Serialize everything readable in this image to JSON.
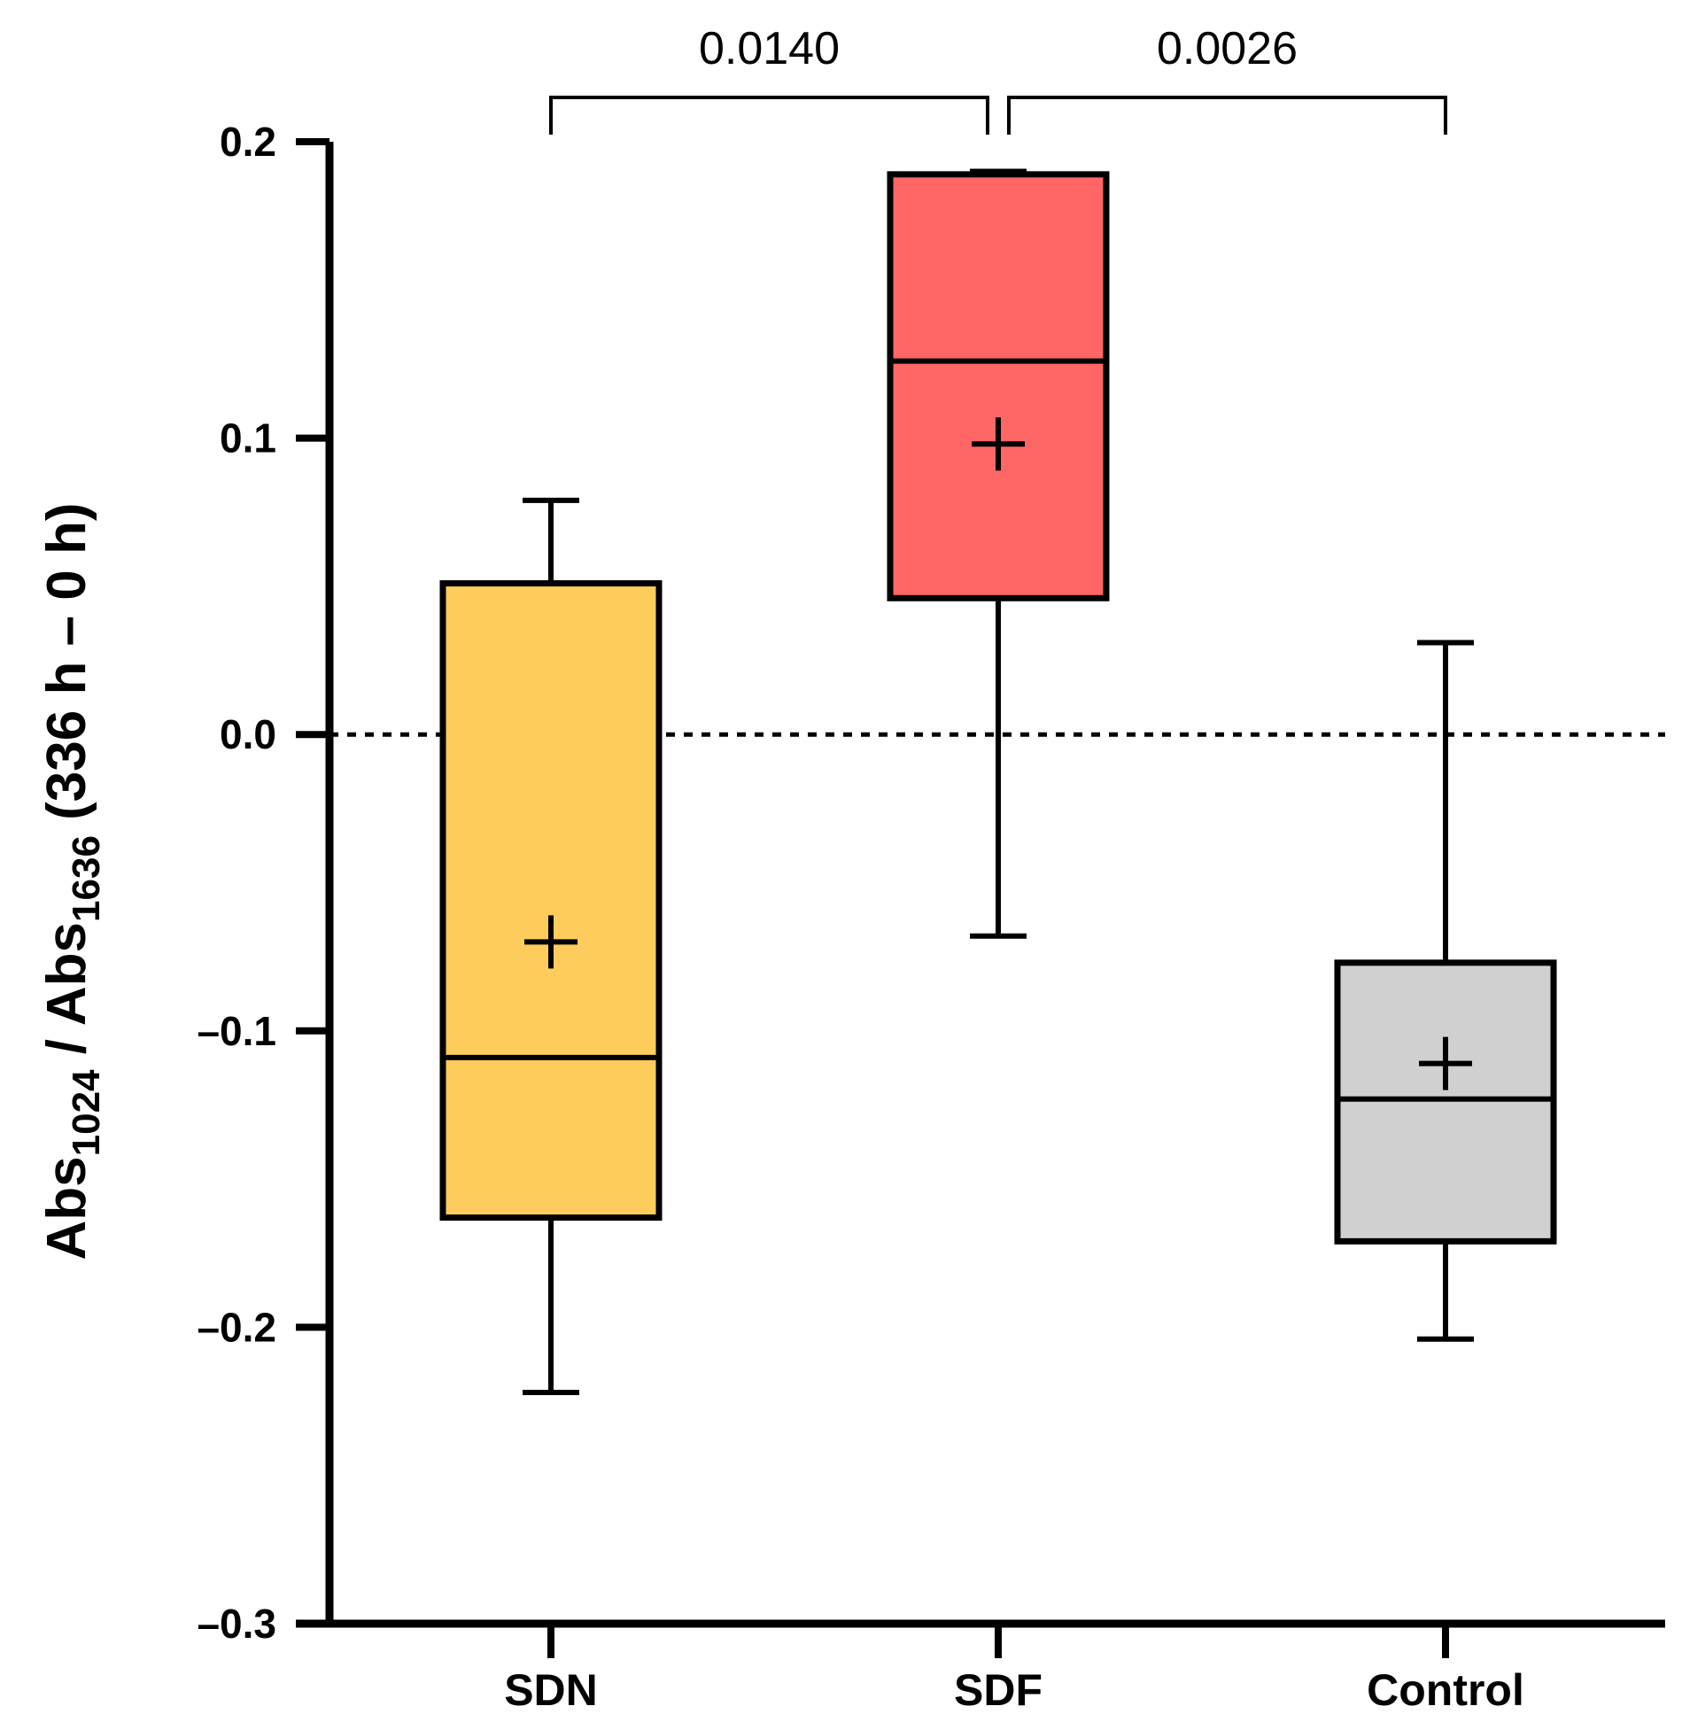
{
  "chart_data": {
    "type": "boxplot",
    "title": "",
    "xlabel": "",
    "ylabel": {
      "parts": [
        {
          "text": "Abs",
          "sub": false
        },
        {
          "text": "1024",
          "sub": true
        },
        {
          "text": " / Abs",
          "sub": false
        },
        {
          "text": "1636",
          "sub": true
        },
        {
          "text": " (336 h – 0 h)",
          "sub": false
        }
      ]
    },
    "ylim": [
      -0.3,
      0.2
    ],
    "yticks": [
      0.2,
      0.1,
      0.0,
      -0.1,
      -0.2,
      -0.3
    ],
    "ytick_labels": [
      "0.2",
      "0.1",
      "0.0",
      "–0.1",
      "–0.2",
      "–0.3"
    ],
    "reference_line": {
      "y": 0.0,
      "style": "dotted"
    },
    "categories": [
      "SDN",
      "SDF",
      "Control"
    ],
    "series": [
      {
        "name": "SDN",
        "color": "#FECC5C",
        "whisker_low": -0.222,
        "q1": -0.163,
        "median": -0.109,
        "q3": 0.051,
        "whisker_high": 0.079,
        "mean": -0.07
      },
      {
        "name": "SDF",
        "color": "#FF6666",
        "whisker_low": -0.068,
        "q1": 0.046,
        "median": 0.126,
        "q3": 0.189,
        "whisker_high": 0.19,
        "mean": 0.098
      },
      {
        "name": "Control",
        "color": "#D0D0D0",
        "whisker_low": -0.204,
        "q1": -0.171,
        "median": -0.123,
        "q3": -0.077,
        "whisker_high": 0.031,
        "mean": -0.111
      }
    ],
    "comparisons": [
      {
        "from": "SDN",
        "to": "SDF",
        "label": "0.0140"
      },
      {
        "from": "SDF",
        "to": "Control",
        "label": "0.0026"
      }
    ]
  }
}
